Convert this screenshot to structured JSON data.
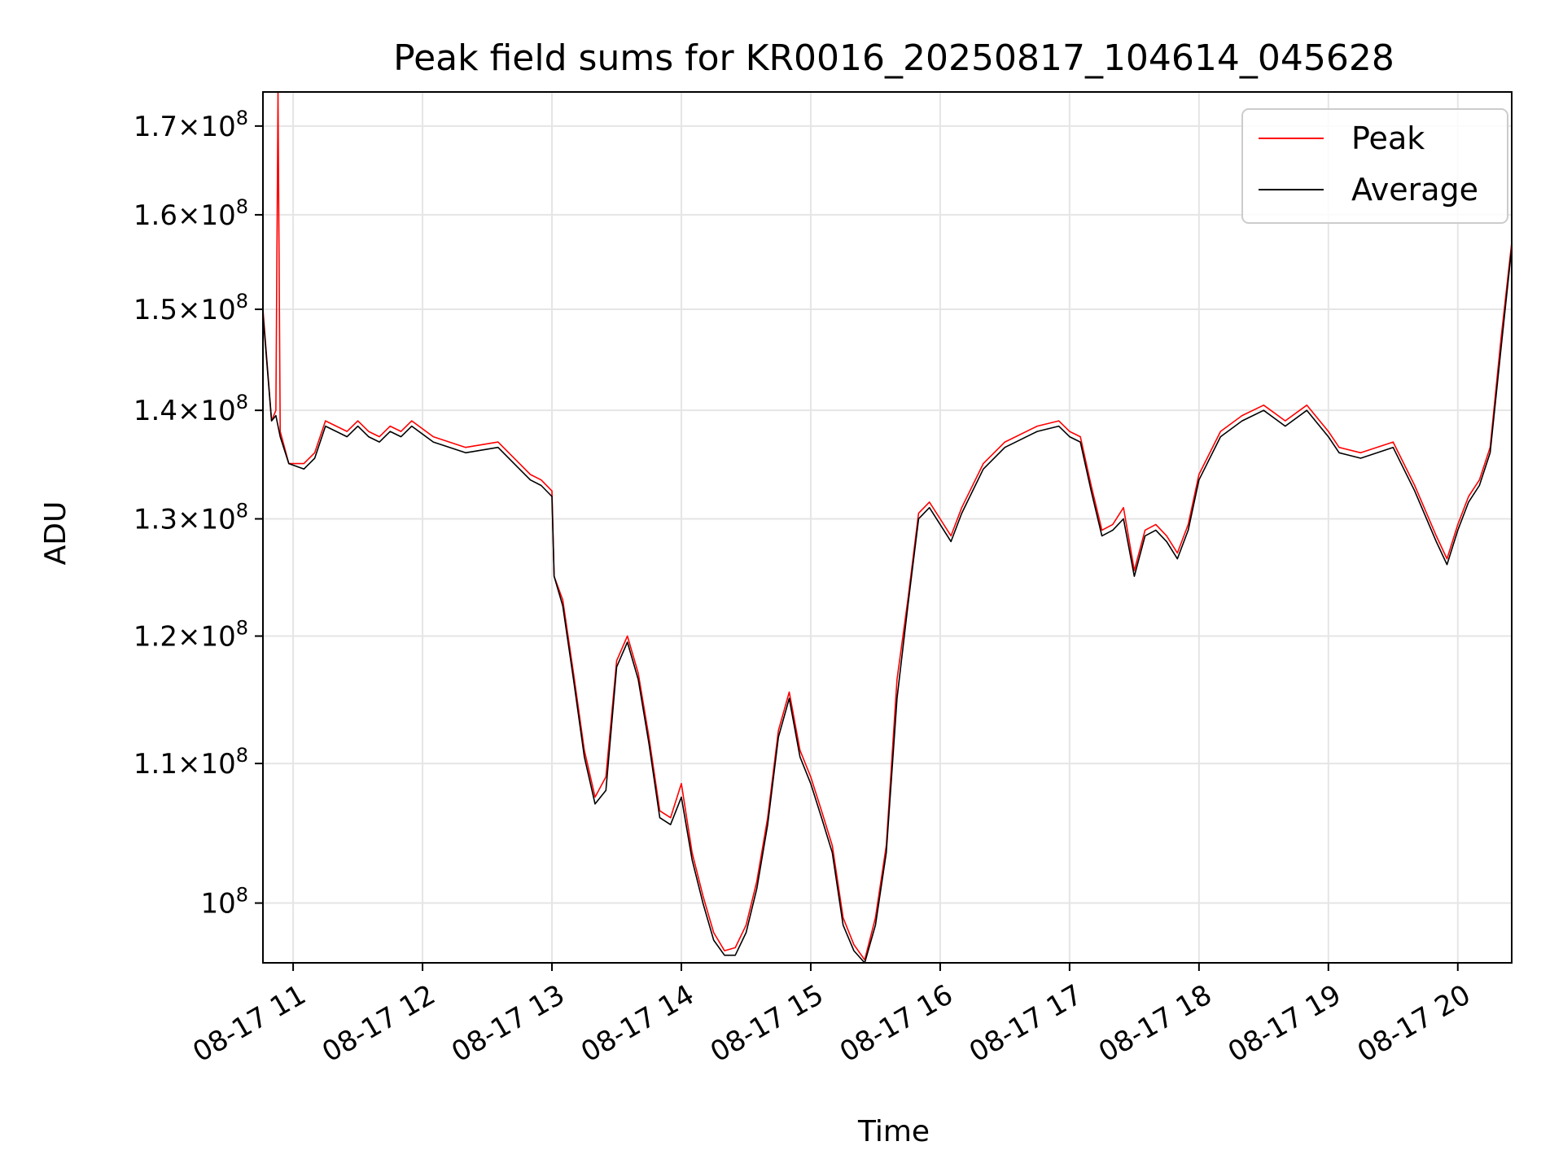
{
  "chart_data": {
    "type": "line",
    "title": "Peak field sums for KR0016_20250817_104614_045628",
    "xlabel": "Time",
    "ylabel": "ADU",
    "y_scale": "log",
    "ylim": [
      96000000,
      174000000
    ],
    "xlim": [
      "08-17 10:46",
      "08-17 20:25"
    ],
    "grid": true,
    "legend_position": "top-right",
    "x_ticks": [
      "08-17 11",
      "08-17 12",
      "08-17 13",
      "08-17 14",
      "08-17 15",
      "08-17 16",
      "08-17 17",
      "08-17 18",
      "08-17 19",
      "08-17 20"
    ],
    "y_ticks": [
      {
        "value": 100000000,
        "mantissa": "",
        "exponent": "8"
      },
      {
        "value": 110000000,
        "mantissa": "1.1",
        "exponent": "8"
      },
      {
        "value": 120000000,
        "mantissa": "1.2",
        "exponent": "8"
      },
      {
        "value": 130000000,
        "mantissa": "1.3",
        "exponent": "8"
      },
      {
        "value": 140000000,
        "mantissa": "1.4",
        "exponent": "8"
      },
      {
        "value": 150000000,
        "mantissa": "1.5",
        "exponent": "8"
      },
      {
        "value": 160000000,
        "mantissa": "1.6",
        "exponent": "8"
      },
      {
        "value": 170000000,
        "mantissa": "1.7",
        "exponent": "8"
      }
    ],
    "series": [
      {
        "name": "Peak",
        "color": "#ff0000",
        "x": [
          "08-17 10:46",
          "08-17 10:50",
          "08-17 10:52",
          "08-17 10:53",
          "08-17 10:54",
          "08-17 10:58",
          "08-17 11:05",
          "08-17 11:10",
          "08-17 11:15",
          "08-17 11:20",
          "08-17 11:25",
          "08-17 11:30",
          "08-17 11:35",
          "08-17 11:40",
          "08-17 11:45",
          "08-17 11:50",
          "08-17 11:55",
          "08-17 12:05",
          "08-17 12:20",
          "08-17 12:35",
          "08-17 12:50",
          "08-17 12:55",
          "08-17 13:00",
          "08-17 13:01",
          "08-17 13:05",
          "08-17 13:10",
          "08-17 13:15",
          "08-17 13:20",
          "08-17 13:25",
          "08-17 13:30",
          "08-17 13:35",
          "08-17 13:40",
          "08-17 13:45",
          "08-17 13:50",
          "08-17 13:55",
          "08-17 14:00",
          "08-17 14:05",
          "08-17 14:10",
          "08-17 14:15",
          "08-17 14:20",
          "08-17 14:25",
          "08-17 14:30",
          "08-17 14:35",
          "08-17 14:40",
          "08-17 14:45",
          "08-17 14:50",
          "08-17 14:55",
          "08-17 15:00",
          "08-17 15:05",
          "08-17 15:10",
          "08-17 15:15",
          "08-17 15:20",
          "08-17 15:25",
          "08-17 15:30",
          "08-17 15:35",
          "08-17 15:40",
          "08-17 15:45",
          "08-17 15:50",
          "08-17 15:55",
          "08-17 16:00",
          "08-17 16:05",
          "08-17 16:10",
          "08-17 16:20",
          "08-17 16:30",
          "08-17 16:45",
          "08-17 16:55",
          "08-17 17:00",
          "08-17 17:05",
          "08-17 17:10",
          "08-17 17:15",
          "08-17 17:20",
          "08-17 17:25",
          "08-17 17:30",
          "08-17 17:35",
          "08-17 17:40",
          "08-17 17:45",
          "08-17 17:50",
          "08-17 17:55",
          "08-17 18:00",
          "08-17 18:10",
          "08-17 18:20",
          "08-17 18:30",
          "08-17 18:40",
          "08-17 18:50",
          "08-17 19:00",
          "08-17 19:05",
          "08-17 19:15",
          "08-17 19:30",
          "08-17 19:40",
          "08-17 19:50",
          "08-17 19:55",
          "08-17 20:00",
          "08-17 20:05",
          "08-17 20:10",
          "08-17 20:15",
          "08-17 20:20",
          "08-17 20:25"
        ],
        "values": [
          150000000,
          139000000,
          140000000,
          174000000,
          138000000,
          135000000,
          135000000,
          136000000,
          139000000,
          138500000,
          138000000,
          139000000,
          138000000,
          137500000,
          138500000,
          138000000,
          139000000,
          137500000,
          136500000,
          137000000,
          134000000,
          133500000,
          132500000,
          125000000,
          123000000,
          117000000,
          111000000,
          107500000,
          109000000,
          118000000,
          120000000,
          117000000,
          112000000,
          106500000,
          106000000,
          108500000,
          103500000,
          100500000,
          98000000,
          96800000,
          97000000,
          98500000,
          101500000,
          106000000,
          112500000,
          115500000,
          111000000,
          109000000,
          106500000,
          104000000,
          99000000,
          97200000,
          96200000,
          99000000,
          104000000,
          116500000,
          123000000,
          130500000,
          131500000,
          130000000,
          128500000,
          131000000,
          135000000,
          137000000,
          138500000,
          139000000,
          138000000,
          137500000,
          133000000,
          129000000,
          129500000,
          131000000,
          125500000,
          129000000,
          129500000,
          128500000,
          127000000,
          129500000,
          134000000,
          138000000,
          139500000,
          140500000,
          139000000,
          140500000,
          138000000,
          136500000,
          136000000,
          137000000,
          133000000,
          128500000,
          126500000,
          129500000,
          132000000,
          133500000,
          136500000,
          147000000,
          157000000
        ]
      },
      {
        "name": "Average",
        "color": "#000000",
        "x": [
          "08-17 10:46",
          "08-17 10:50",
          "08-17 10:52",
          "08-17 10:54",
          "08-17 10:58",
          "08-17 11:05",
          "08-17 11:10",
          "08-17 11:15",
          "08-17 11:20",
          "08-17 11:25",
          "08-17 11:30",
          "08-17 11:35",
          "08-17 11:40",
          "08-17 11:45",
          "08-17 11:50",
          "08-17 11:55",
          "08-17 12:05",
          "08-17 12:20",
          "08-17 12:35",
          "08-17 12:50",
          "08-17 12:55",
          "08-17 13:00",
          "08-17 13:01",
          "08-17 13:05",
          "08-17 13:10",
          "08-17 13:15",
          "08-17 13:20",
          "08-17 13:25",
          "08-17 13:30",
          "08-17 13:35",
          "08-17 13:40",
          "08-17 13:45",
          "08-17 13:50",
          "08-17 13:55",
          "08-17 14:00",
          "08-17 14:05",
          "08-17 14:10",
          "08-17 14:15",
          "08-17 14:20",
          "08-17 14:25",
          "08-17 14:30",
          "08-17 14:35",
          "08-17 14:40",
          "08-17 14:45",
          "08-17 14:50",
          "08-17 14:55",
          "08-17 15:00",
          "08-17 15:05",
          "08-17 15:10",
          "08-17 15:15",
          "08-17 15:20",
          "08-17 15:25",
          "08-17 15:30",
          "08-17 15:35",
          "08-17 15:40",
          "08-17 15:45",
          "08-17 15:50",
          "08-17 15:55",
          "08-17 16:00",
          "08-17 16:05",
          "08-17 16:10",
          "08-17 16:20",
          "08-17 16:30",
          "08-17 16:45",
          "08-17 16:55",
          "08-17 17:00",
          "08-17 17:05",
          "08-17 17:10",
          "08-17 17:15",
          "08-17 17:20",
          "08-17 17:25",
          "08-17 17:30",
          "08-17 17:35",
          "08-17 17:40",
          "08-17 17:45",
          "08-17 17:50",
          "08-17 17:55",
          "08-17 18:00",
          "08-17 18:10",
          "08-17 18:20",
          "08-17 18:30",
          "08-17 18:40",
          "08-17 18:50",
          "08-17 19:00",
          "08-17 19:05",
          "08-17 19:15",
          "08-17 19:30",
          "08-17 19:40",
          "08-17 19:50",
          "08-17 19:55",
          "08-17 20:00",
          "08-17 20:05",
          "08-17 20:10",
          "08-17 20:15",
          "08-17 20:20",
          "08-17 20:25"
        ],
        "values": [
          149500000,
          139000000,
          139500000,
          137500000,
          135000000,
          134500000,
          135500000,
          138500000,
          138000000,
          137500000,
          138500000,
          137500000,
          137000000,
          138000000,
          137500000,
          138500000,
          137000000,
          136000000,
          136500000,
          133500000,
          133000000,
          132000000,
          125000000,
          122500000,
          116500000,
          110500000,
          107000000,
          108000000,
          117500000,
          119500000,
          116500000,
          111500000,
          106000000,
          105500000,
          107500000,
          103000000,
          100000000,
          97500000,
          96500000,
          96500000,
          98000000,
          101000000,
          105500000,
          112000000,
          115000000,
          110500000,
          108500000,
          106000000,
          103500000,
          98500000,
          96800000,
          96000000,
          98500000,
          103500000,
          115000000,
          122500000,
          130000000,
          131000000,
          129500000,
          128000000,
          130500000,
          134500000,
          136500000,
          138000000,
          138500000,
          137500000,
          137000000,
          132500000,
          128500000,
          129000000,
          130000000,
          125000000,
          128500000,
          129000000,
          128000000,
          126500000,
          129000000,
          133500000,
          137500000,
          139000000,
          140000000,
          138500000,
          140000000,
          137500000,
          136000000,
          135500000,
          136500000,
          132500000,
          128000000,
          126000000,
          129000000,
          131500000,
          133000000,
          136000000,
          146000000,
          156500000
        ]
      }
    ]
  }
}
